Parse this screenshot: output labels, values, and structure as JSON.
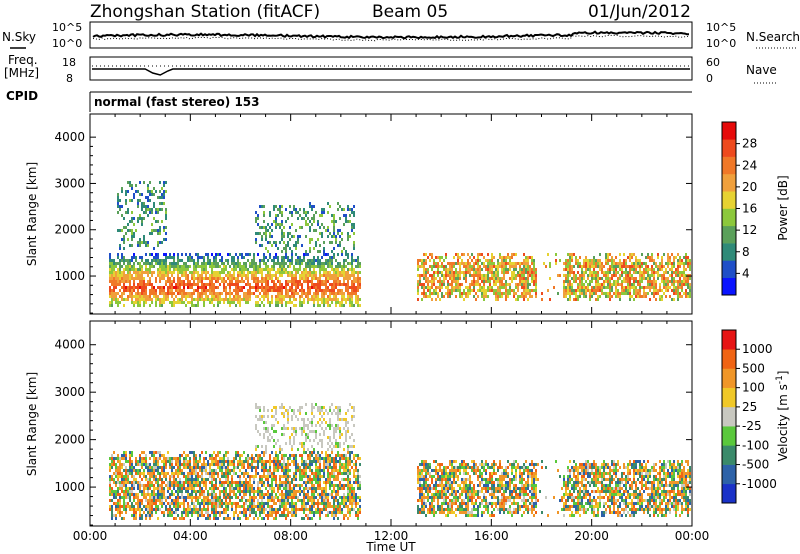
{
  "header": {
    "station": "Zhongshan Station (fitACF)",
    "beam": "Beam 05",
    "date": "01/Jun/2012"
  },
  "panels": {
    "nsky": {
      "label_left": "N.Sky",
      "left_ticks": [
        "10^5",
        "10^0"
      ],
      "label_right": "N.Search",
      "right_ticks": [
        "10^5",
        "10^0"
      ]
    },
    "freq": {
      "label_left_line1": "Freq.",
      "label_left_line2": "[MHz]",
      "left_ticks": [
        "18",
        "8"
      ],
      "label_right": "Nave",
      "right_ticks": [
        "60",
        "0"
      ]
    },
    "cpid": {
      "label": "CPID",
      "mode": "normal (fast stereo) 153"
    }
  },
  "chart_data": [
    {
      "type": "heatmap",
      "quantity": "Power",
      "ylabel": "Slant Range [km]",
      "ylim": [
        180,
        4500
      ],
      "yticks": [
        "1000",
        "2000",
        "3000",
        "4000"
      ],
      "xlim_hours": [
        0,
        24
      ],
      "colorbar": {
        "label": "Power [dB]",
        "ticks": [
          "4",
          "8",
          "12",
          "16",
          "20",
          "24",
          "28"
        ],
        "colors": [
          "#0a14ff",
          "#1f4fc8",
          "#2f8a78",
          "#5aa05a",
          "#8cc83c",
          "#e6d232",
          "#f0a03c",
          "#f07828",
          "#ee4a1e",
          "#e60a0a"
        ]
      },
      "features": [
        {
          "start_hour": 0.7,
          "end_hour": 10.8,
          "range_km": [
            350,
            1500
          ],
          "level": "strong"
        },
        {
          "start_hour": 13.0,
          "end_hour": 24.0,
          "range_km": [
            500,
            1500
          ],
          "level": "moderate"
        },
        {
          "start_hour": 6.5,
          "end_hour": 10.5,
          "range_km": [
            1500,
            2600
          ],
          "level": "weak"
        },
        {
          "start_hour": 1.0,
          "end_hour": 3.0,
          "range_km": [
            1600,
            3100
          ],
          "level": "weak"
        }
      ]
    },
    {
      "type": "heatmap",
      "quantity": "Velocity",
      "ylabel": "Slant Range [km]",
      "ylim": [
        180,
        4500
      ],
      "yticks": [
        "1000",
        "2000",
        "3000",
        "4000"
      ],
      "xlim_hours": [
        0,
        24
      ],
      "xticks": [
        "00:00",
        "04:00",
        "08:00",
        "12:00",
        "16:00",
        "20:00",
        "00:00"
      ],
      "xlabel": "Time UT",
      "colorbar": {
        "label": "Velocity [m s",
        "label_exp": "-1",
        "label_close": "]",
        "ticks": [
          "1000",
          "500",
          "100",
          "25",
          "-25",
          "-100",
          "-500",
          "-1000"
        ],
        "colors": [
          "#1a32c8",
          "#2d62a8",
          "#3a8a6a",
          "#5ac83c",
          "#c8c8c0",
          "#f0c828",
          "#f09628",
          "#f06414",
          "#e61414"
        ]
      },
      "features": [
        {
          "start_hour": 0.7,
          "end_hour": 10.8,
          "range_km": [
            350,
            1800
          ],
          "sign": "mixed"
        },
        {
          "start_hour": 6.5,
          "end_hour": 10.5,
          "range_km": [
            1300,
            2800
          ],
          "sign": "near-zero"
        },
        {
          "start_hour": 13.0,
          "end_hour": 24.0,
          "range_km": [
            400,
            1600
          ],
          "sign": "mixed"
        }
      ]
    }
  ]
}
